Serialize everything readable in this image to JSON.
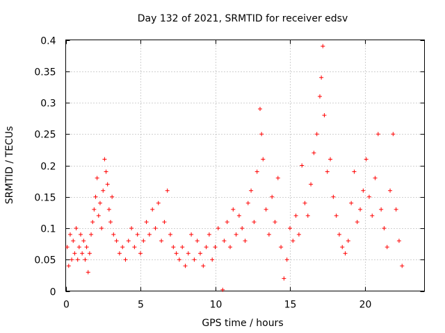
{
  "chart_data": {
    "type": "scatter",
    "title": "Day 132 of 2021, SRMTID for receiver edsv",
    "xlabel": "GPS time / hours",
    "ylabel": "SRMTID / TECUs",
    "xlim": [
      0,
      24
    ],
    "ylim": [
      0,
      0.4
    ],
    "xticks": [
      0,
      5,
      10,
      15,
      20
    ],
    "yticks": [
      0,
      0.05,
      0.1,
      0.15,
      0.2,
      0.25,
      0.3,
      0.35,
      0.4
    ],
    "xtick_labels": [
      "0",
      "5",
      "10",
      "15",
      "20"
    ],
    "ytick_labels": [
      "0",
      "0.05",
      "0.1",
      "0.15",
      "0.2",
      "0.25",
      "0.3",
      "0.35",
      "0.4"
    ],
    "grid": true,
    "marker": "+",
    "series": [
      {
        "name": "SRMTID",
        "color": "#ff0000",
        "points": [
          [
            0.1,
            0.07
          ],
          [
            0.2,
            0.04
          ],
          [
            0.3,
            0.09
          ],
          [
            0.4,
            0.05
          ],
          [
            0.5,
            0.08
          ],
          [
            0.6,
            0.06
          ],
          [
            0.7,
            0.1
          ],
          [
            0.8,
            0.05
          ],
          [
            0.9,
            0.07
          ],
          [
            1.0,
            0.09
          ],
          [
            1.1,
            0.06
          ],
          [
            1.2,
            0.08
          ],
          [
            1.3,
            0.05
          ],
          [
            1.4,
            0.07
          ],
          [
            1.5,
            0.03
          ],
          [
            1.6,
            0.06
          ],
          [
            1.7,
            0.09
          ],
          [
            1.8,
            0.11
          ],
          [
            1.9,
            0.13
          ],
          [
            2.0,
            0.15
          ],
          [
            2.1,
            0.18
          ],
          [
            2.2,
            0.12
          ],
          [
            2.3,
            0.14
          ],
          [
            2.4,
            0.1
          ],
          [
            2.5,
            0.16
          ],
          [
            2.6,
            0.21
          ],
          [
            2.7,
            0.19
          ],
          [
            2.8,
            0.17
          ],
          [
            2.9,
            0.13
          ],
          [
            3.0,
            0.11
          ],
          [
            3.1,
            0.15
          ],
          [
            3.2,
            0.09
          ],
          [
            3.4,
            0.08
          ],
          [
            3.6,
            0.06
          ],
          [
            3.8,
            0.07
          ],
          [
            4.0,
            0.05
          ],
          [
            4.2,
            0.08
          ],
          [
            4.4,
            0.1
          ],
          [
            4.6,
            0.07
          ],
          [
            4.8,
            0.09
          ],
          [
            5.0,
            0.06
          ],
          [
            5.2,
            0.08
          ],
          [
            5.4,
            0.11
          ],
          [
            5.6,
            0.09
          ],
          [
            5.8,
            0.13
          ],
          [
            6.0,
            0.1
          ],
          [
            6.2,
            0.14
          ],
          [
            6.4,
            0.08
          ],
          [
            6.6,
            0.11
          ],
          [
            6.8,
            0.16
          ],
          [
            7.0,
            0.09
          ],
          [
            7.2,
            0.07
          ],
          [
            7.4,
            0.06
          ],
          [
            7.6,
            0.05
          ],
          [
            7.8,
            0.07
          ],
          [
            8.0,
            0.04
          ],
          [
            8.2,
            0.06
          ],
          [
            8.4,
            0.09
          ],
          [
            8.6,
            0.05
          ],
          [
            8.8,
            0.08
          ],
          [
            9.0,
            0.06
          ],
          [
            9.2,
            0.04
          ],
          [
            9.4,
            0.07
          ],
          [
            9.6,
            0.09
          ],
          [
            9.8,
            0.05
          ],
          [
            10.0,
            0.07
          ],
          [
            10.2,
            0.1
          ],
          [
            10.5,
            0.002
          ],
          [
            10.6,
            0.08
          ],
          [
            10.8,
            0.11
          ],
          [
            11.0,
            0.07
          ],
          [
            11.2,
            0.13
          ],
          [
            11.4,
            0.09
          ],
          [
            11.6,
            0.12
          ],
          [
            11.8,
            0.1
          ],
          [
            12.0,
            0.08
          ],
          [
            12.2,
            0.14
          ],
          [
            12.4,
            0.16
          ],
          [
            12.6,
            0.11
          ],
          [
            12.8,
            0.19
          ],
          [
            13.0,
            0.29
          ],
          [
            13.1,
            0.25
          ],
          [
            13.2,
            0.21
          ],
          [
            13.4,
            0.13
          ],
          [
            13.6,
            0.09
          ],
          [
            13.8,
            0.15
          ],
          [
            14.0,
            0.11
          ],
          [
            14.2,
            0.18
          ],
          [
            14.4,
            0.07
          ],
          [
            14.6,
            0.02
          ],
          [
            14.8,
            0.05
          ],
          [
            15.0,
            0.1
          ],
          [
            15.2,
            0.08
          ],
          [
            15.4,
            0.12
          ],
          [
            15.6,
            0.09
          ],
          [
            15.8,
            0.2
          ],
          [
            16.0,
            0.14
          ],
          [
            16.2,
            0.12
          ],
          [
            16.4,
            0.17
          ],
          [
            16.6,
            0.22
          ],
          [
            16.8,
            0.25
          ],
          [
            17.0,
            0.31
          ],
          [
            17.1,
            0.34
          ],
          [
            17.2,
            0.39
          ],
          [
            17.3,
            0.28
          ],
          [
            17.5,
            0.19
          ],
          [
            17.7,
            0.21
          ],
          [
            17.9,
            0.15
          ],
          [
            18.1,
            0.12
          ],
          [
            18.3,
            0.09
          ],
          [
            18.5,
            0.07
          ],
          [
            18.7,
            0.06
          ],
          [
            18.9,
            0.08
          ],
          [
            19.1,
            0.14
          ],
          [
            19.3,
            0.19
          ],
          [
            19.5,
            0.11
          ],
          [
            19.7,
            0.13
          ],
          [
            19.9,
            0.16
          ],
          [
            20.1,
            0.21
          ],
          [
            20.3,
            0.15
          ],
          [
            20.5,
            0.12
          ],
          [
            20.7,
            0.18
          ],
          [
            20.9,
            0.25
          ],
          [
            21.1,
            0.13
          ],
          [
            21.3,
            0.1
          ],
          [
            21.5,
            0.07
          ],
          [
            21.7,
            0.16
          ],
          [
            21.9,
            0.25
          ],
          [
            22.1,
            0.13
          ],
          [
            22.3,
            0.08
          ],
          [
            22.5,
            0.04
          ]
        ]
      }
    ]
  }
}
